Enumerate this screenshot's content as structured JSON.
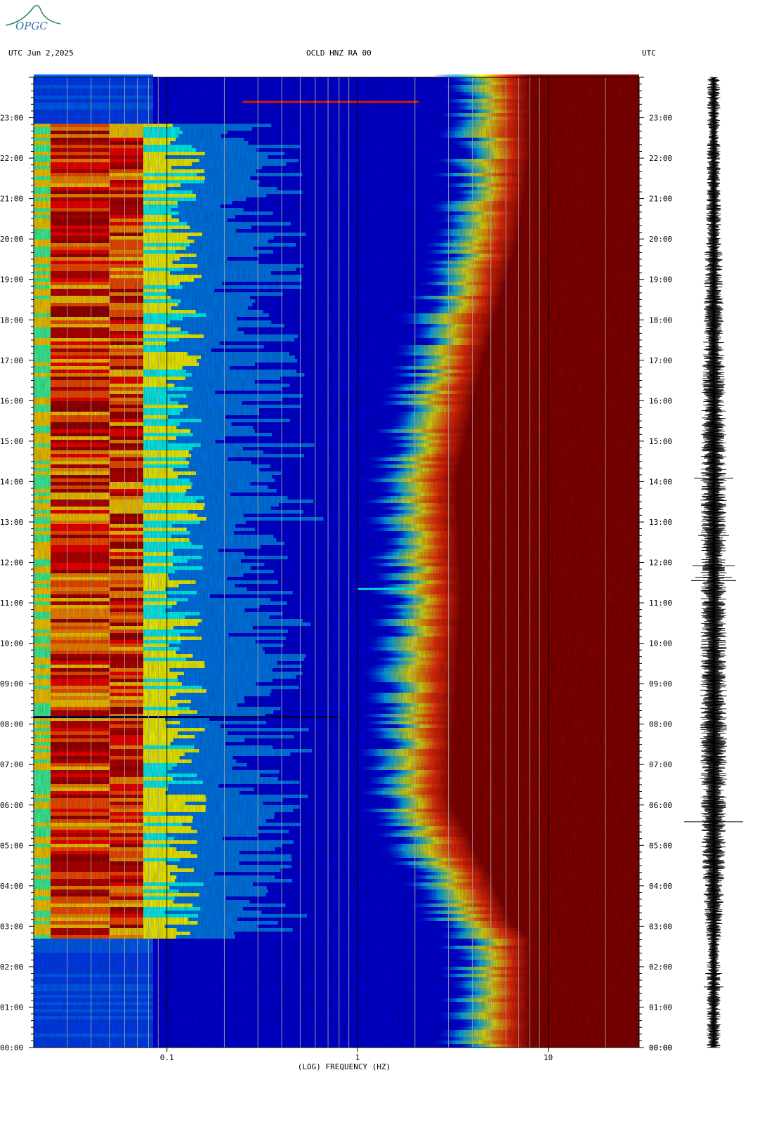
{
  "header": {
    "left": "UTC  Jun 2,2025",
    "center": "OCLD HNZ RA 00",
    "right": "UTC"
  },
  "logo": {
    "text": "OPGC",
    "color": "#2e8b57"
  },
  "chart_data": {
    "type": "heatmap",
    "title": "OCLD HNZ RA 00",
    "date": "Jun 2,2025",
    "xlabel": "(LOG) FREQUENCY (HZ)",
    "x_scale": "log",
    "xlim": [
      0.02,
      30
    ],
    "x_ticks": [
      {
        "value": 0.1,
        "label": "0.1"
      },
      {
        "value": 1,
        "label": "1"
      },
      {
        "value": 10,
        "label": "10"
      }
    ],
    "ylabel": "UTC",
    "ylim": [
      "00:00",
      "24:00"
    ],
    "y_ticks": [
      "00:00",
      "01:00",
      "02:00",
      "03:00",
      "04:00",
      "05:00",
      "06:00",
      "07:00",
      "08:00",
      "09:00",
      "10:00",
      "11:00",
      "12:00",
      "13:00",
      "14:00",
      "15:00",
      "16:00",
      "17:00",
      "18:00",
      "19:00",
      "20:00",
      "21:00",
      "22:00",
      "23:00"
    ],
    "colormap": [
      "#00008b",
      "#0000ff",
      "#0080ff",
      "#00ffff",
      "#ffff00",
      "#ff8000",
      "#ff0000",
      "#8b0000"
    ],
    "high_frequency_edge_hz": [
      {
        "time": "00:00",
        "hz": 8
      },
      {
        "time": "02:40",
        "hz": 8
      },
      {
        "time": "03:00",
        "hz": 6.5
      },
      {
        "time": "04:00",
        "hz": 5.2
      },
      {
        "time": "06:00",
        "hz": 3.1
      },
      {
        "time": "08:00",
        "hz": 3.2
      },
      {
        "time": "11:00",
        "hz": 3.5
      },
      {
        "time": "14:00",
        "hz": 3.3
      },
      {
        "time": "17:00",
        "hz": 4.6
      },
      {
        "time": "20:00",
        "hz": 7
      },
      {
        "time": "21:00",
        "hz": 7.5
      },
      {
        "time": "22:00",
        "hz": 8
      },
      {
        "time": "24:00",
        "hz": 8
      }
    ],
    "low_frequency_band_hz": [
      0.02,
      0.1
    ],
    "low_frequency_active_period": [
      "02:40",
      "22:50"
    ],
    "waveform": {
      "type": "seismogram trace",
      "color": "#000000"
    }
  },
  "colors": {
    "background": "#ffffff",
    "text": "#000000"
  }
}
